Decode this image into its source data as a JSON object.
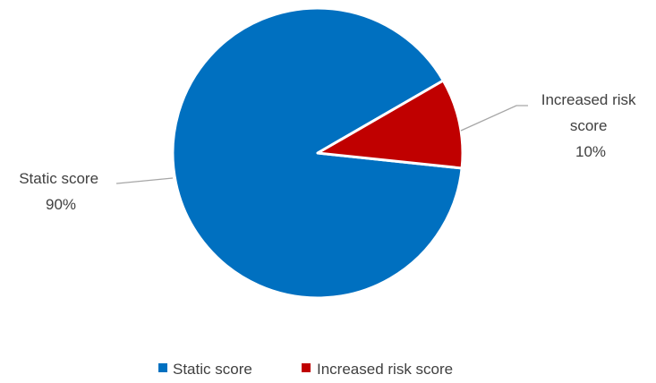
{
  "chart_data": {
    "type": "pie",
    "series": [
      {
        "name": "Static score",
        "value": 90,
        "label_lines": [
          "Static score",
          "90%"
        ],
        "color": "#0070C0"
      },
      {
        "name": "Increased risk score",
        "value": 10,
        "label_lines": [
          "Increased risk",
          "score",
          "10%"
        ],
        "color": "#C00000"
      }
    ],
    "legend": {
      "position": "bottom",
      "items": [
        "Static score",
        "Increased risk score"
      ]
    },
    "leader_line_color": "#A6A6A6",
    "slice_border_color": "#FFFFFF"
  }
}
